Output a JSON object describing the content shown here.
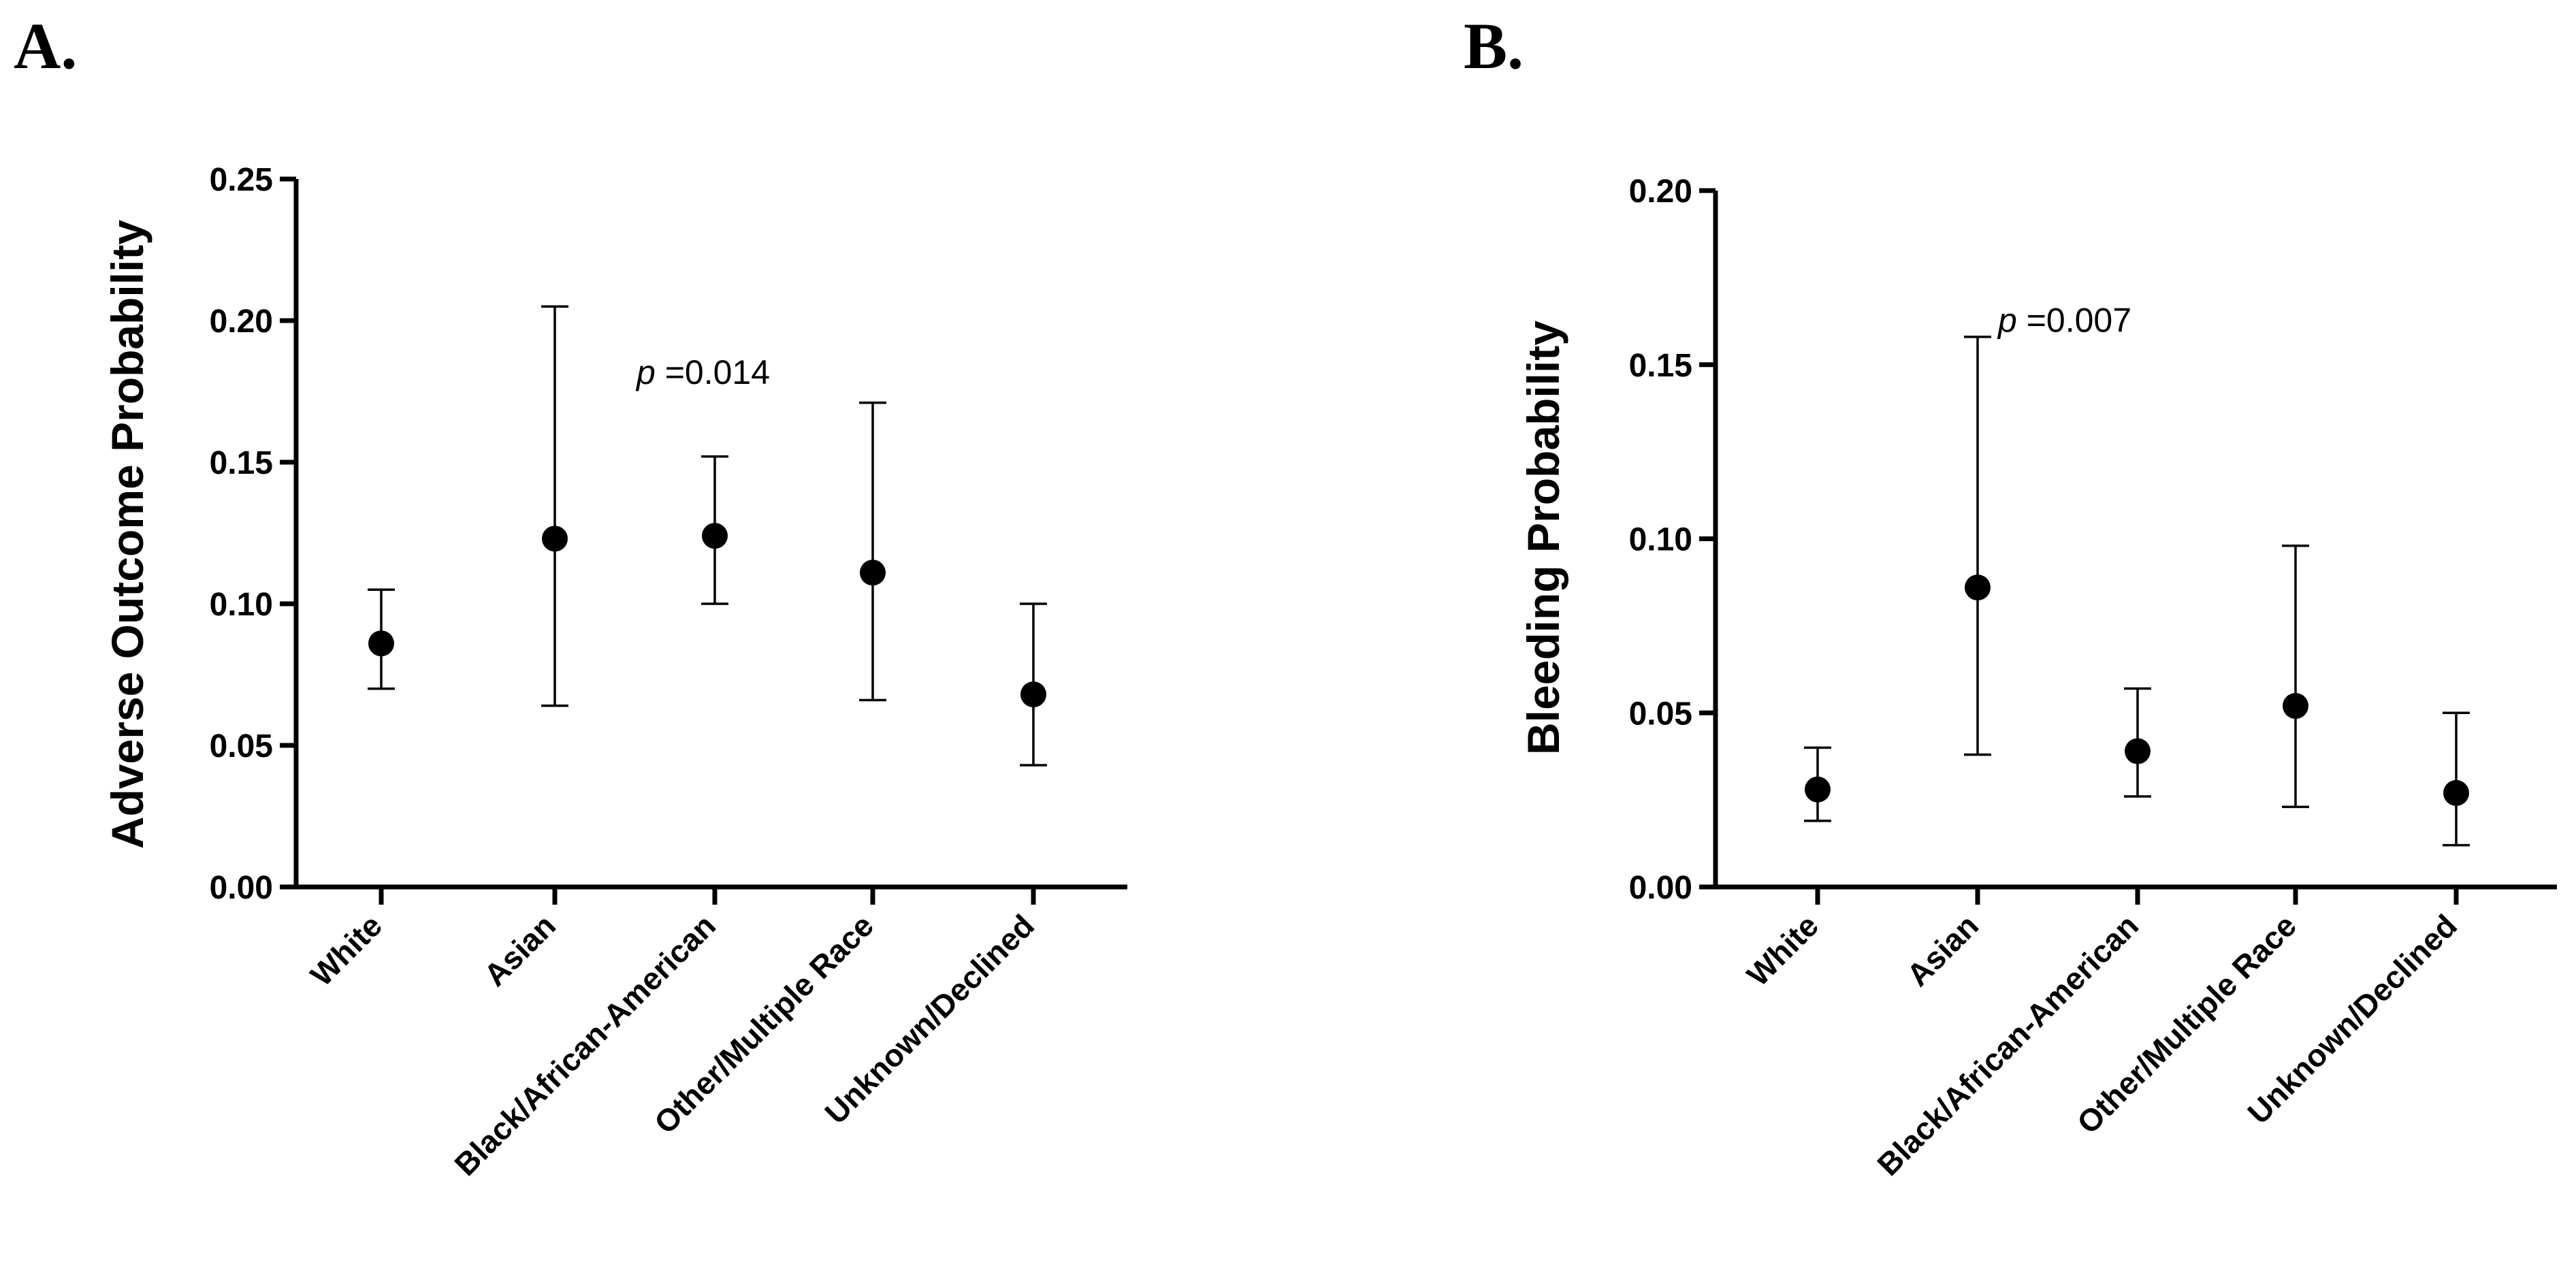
{
  "chart_data": [
    {
      "panel_label": "A.",
      "type": "scatter",
      "title": "",
      "xlabel": "",
      "ylabel": "Adverse Outcome Probability",
      "ylim": [
        0,
        0.25
      ],
      "yticks": [
        "0.00",
        "0.05",
        "0.10",
        "0.15",
        "0.20",
        "0.25"
      ],
      "categories": [
        "White",
        "Asian",
        "Black/African-American",
        "Other/Multiple Race",
        "Unknown/Declined"
      ],
      "values": [
        0.086,
        0.123,
        0.124,
        0.111,
        0.068
      ],
      "lower": [
        0.07,
        0.064,
        0.1,
        0.066,
        0.043
      ],
      "upper": [
        0.105,
        0.205,
        0.152,
        0.171,
        0.1
      ],
      "annotation": {
        "prefix": "p",
        "text": " =0.014",
        "x_index": 2,
        "y": 0.182
      }
    },
    {
      "panel_label": "B.",
      "type": "scatter",
      "title": "",
      "xlabel": "",
      "ylabel": "Bleeding Probability",
      "ylim": [
        0,
        0.2
      ],
      "yticks": [
        "0.00",
        "0.05",
        "0.10",
        "0.15",
        "0.20"
      ],
      "categories": [
        "White",
        "Asian",
        "Black/African-American",
        "Other/Multiple Race",
        "Unknown/Declined"
      ],
      "values": [
        0.028,
        0.086,
        0.039,
        0.052,
        0.027
      ],
      "lower": [
        0.019,
        0.038,
        0.026,
        0.023,
        0.012
      ],
      "upper": [
        0.04,
        0.158,
        0.057,
        0.098,
        0.05
      ],
      "annotation": {
        "prefix": "p",
        "text": " =0.007",
        "x_index": 1,
        "y": 0.163
      }
    }
  ]
}
